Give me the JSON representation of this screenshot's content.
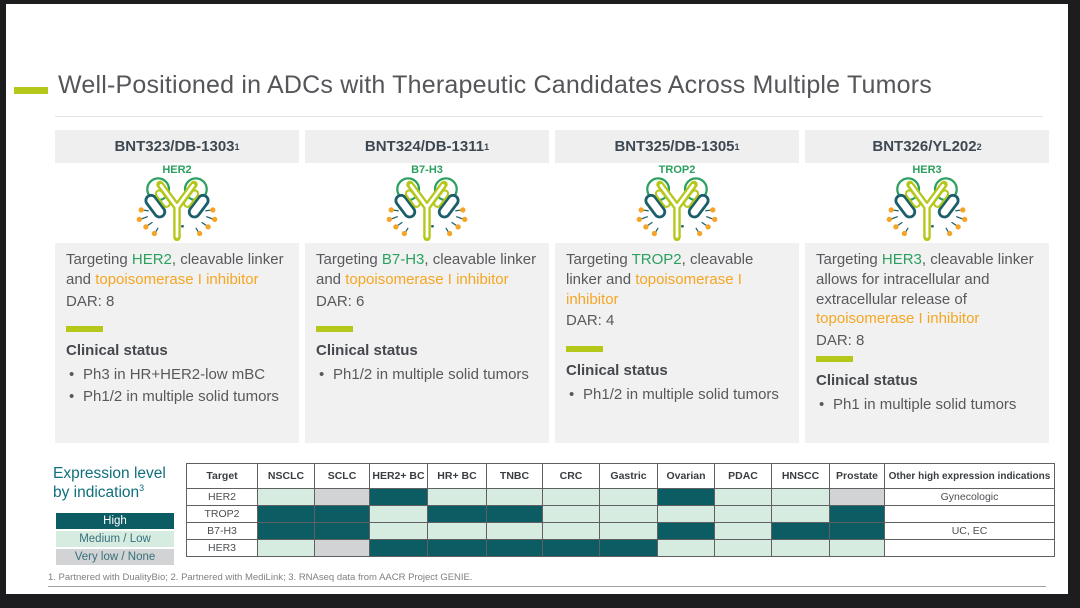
{
  "title": "Well-Positioned in ADCs with Therapeutic Candidates Across Multiple Tumors",
  "candidates": [
    {
      "name": "BNT323/DB-1303",
      "sup": "1",
      "target_label": "HER2",
      "desc": {
        "pre": "Targeting ",
        "target": "HER2",
        "mid": ", cleavable linker and ",
        "payload": "topoisomerase I inhibitor",
        "post": ""
      },
      "dar": "DAR: 8",
      "clinical_heading": "Clinical status",
      "bullets": [
        "Ph3 in HR+HER2-low mBC",
        "Ph1/2 in multiple solid tumors"
      ]
    },
    {
      "name": "BNT324/DB-1311",
      "sup": "1",
      "target_label": "B7-H3",
      "desc": {
        "pre": "Targeting ",
        "target": "B7-H3",
        "mid": ", cleavable linker and ",
        "payload": "topoisomerase I inhibitor",
        "post": ""
      },
      "dar": "DAR: 6",
      "clinical_heading": "Clinical status",
      "bullets": [
        "Ph1/2 in multiple solid tumors"
      ]
    },
    {
      "name": "BNT325/DB-1305",
      "sup": "1",
      "target_label": "TROP2",
      "desc": {
        "pre": "Targeting ",
        "target": "TROP2",
        "mid": ", cleavable linker and ",
        "payload": "topoisomerase I inhibitor",
        "post": ""
      },
      "dar": "DAR: 4",
      "clinical_heading": "Clinical status",
      "bullets": [
        "Ph1/2 in multiple solid tumors"
      ]
    },
    {
      "name": "BNT326/YL202",
      "sup": "2",
      "target_label": "HER3",
      "desc": {
        "pre": "Targeting ",
        "target": "HER3",
        "mid": ", cleavable linker allows for intracellular and extracellular release of ",
        "payload": "topoisomerase I inhibitor",
        "post": ""
      },
      "dar": "DAR: 8",
      "clinical_heading": "Clinical status",
      "bullets": [
        "Ph1 in multiple solid tumors"
      ]
    }
  ],
  "expression": {
    "heading_line1": "Expression level",
    "heading_line2": "by indication",
    "heading_sup": "3",
    "legend": [
      {
        "label": "High",
        "level": "high"
      },
      {
        "label": "Medium / Low",
        "level": "medium"
      },
      {
        "label": "Very low / None",
        "level": "verylow"
      }
    ],
    "table": {
      "columns": [
        "Target",
        "NSCLC",
        "SCLC",
        "HER2+ BC",
        "HR+ BC",
        "TNBC",
        "CRC",
        "Gastric",
        "Ovarian",
        "PDAC",
        "HNSCC",
        "Prostate",
        "Other high expression indications"
      ],
      "rows": [
        {
          "target": "HER2",
          "levels": [
            "medium",
            "verylow",
            "high",
            "medium",
            "medium",
            "medium",
            "medium",
            "high",
            "medium",
            "medium",
            "verylow"
          ],
          "other": "Gynecologic"
        },
        {
          "target": "TROP2",
          "levels": [
            "high",
            "high",
            "medium",
            "high",
            "high",
            "medium",
            "medium",
            "medium",
            "medium",
            "medium",
            "high"
          ],
          "other": ""
        },
        {
          "target": "B7-H3",
          "levels": [
            "high",
            "high",
            "medium",
            "medium",
            "medium",
            "medium",
            "medium",
            "high",
            "medium",
            "high",
            "high"
          ],
          "other": "UC, EC"
        },
        {
          "target": "HER3",
          "levels": [
            "medium",
            "verylow",
            "high",
            "high",
            "high",
            "high",
            "high",
            "medium",
            "medium",
            "medium",
            "medium"
          ],
          "other": ""
        }
      ]
    }
  },
  "footnote": "1. Partnered with DualityBio; 2. Partnered with MediLink; 3. RNAseq data from AACR Project GENIE.",
  "colors": {
    "accent_chartreuse": "#b5c718",
    "target_green": "#2ba05f",
    "payload_orange": "#f5a623",
    "expression_high": "#0c5c64",
    "expression_medium_low": "#d7ece1",
    "expression_very_low": "#d2d3d4",
    "teal_heading": "#0f6f7d"
  }
}
